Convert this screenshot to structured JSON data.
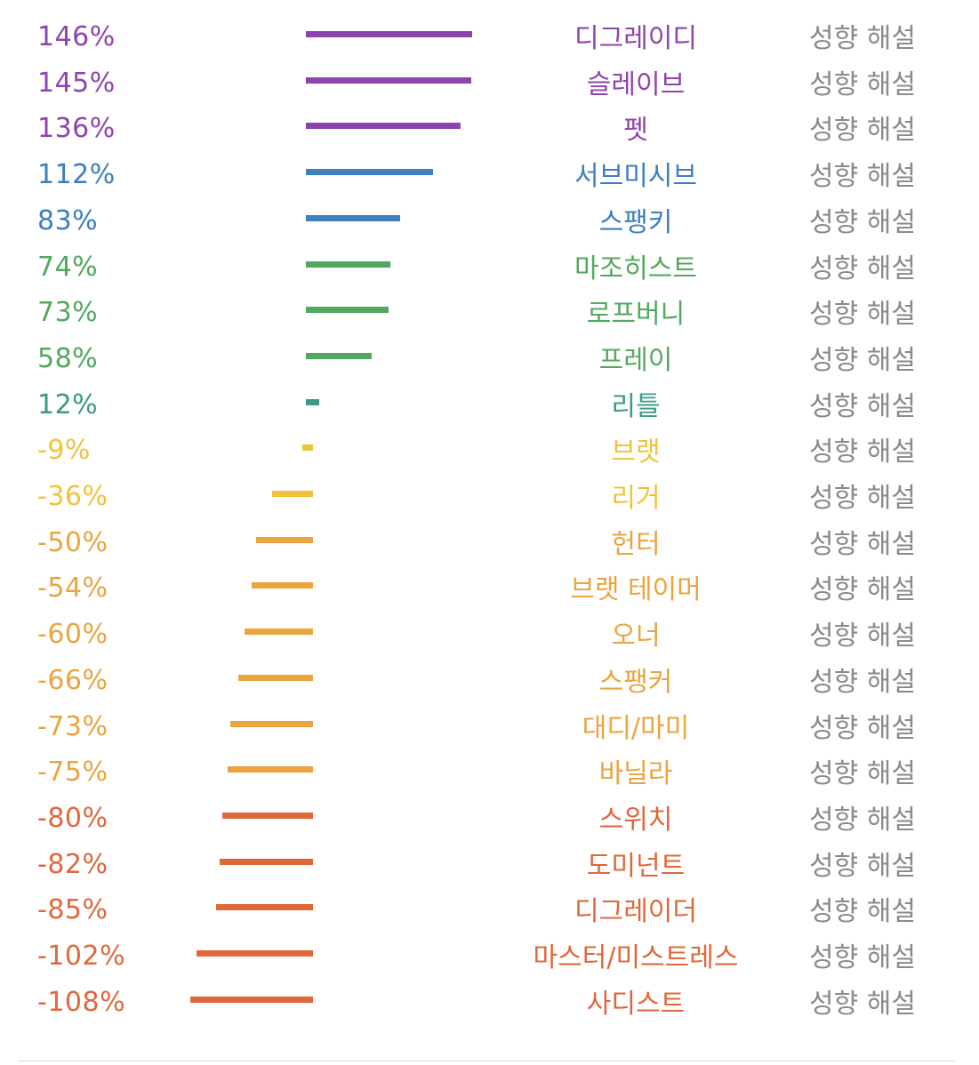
{
  "chart_data": {
    "type": "bar",
    "orientation": "horizontal",
    "categories": [
      "디그레이디",
      "슬레이브",
      "펫",
      "서브미시브",
      "스팽키",
      "마조히스트",
      "로프버니",
      "프레이",
      "리틀",
      "브랫",
      "리거",
      "헌터",
      "브랫 테이머",
      "오너",
      "스팽커",
      "대디/마미",
      "바닐라",
      "스위치",
      "도미넌트",
      "디그레이더",
      "마스터/미스트레스",
      "사디스트"
    ],
    "values": [
      146,
      145,
      136,
      112,
      83,
      74,
      73,
      58,
      12,
      -9,
      -36,
      -50,
      -54,
      -60,
      -66,
      -73,
      -75,
      -80,
      -82,
      -85,
      -102,
      -108
    ],
    "labels": [
      "146%",
      "145%",
      "136%",
      "112%",
      "83%",
      "74%",
      "73%",
      "58%",
      "12%",
      "-9%",
      "-36%",
      "-50%",
      "-54%",
      "-60%",
      "-66%",
      "-73%",
      "-75%",
      "-80%",
      "-82%",
      "-85%",
      "-102%",
      "-108%"
    ],
    "colors": [
      "#8e44ad",
      "#8e44ad",
      "#8e44ad",
      "#3d7fbf",
      "#3d7fbf",
      "#52a85e",
      "#52a85e",
      "#52a85e",
      "#3a9a86",
      "#f2c23c",
      "#f2c23c",
      "#eba43f",
      "#eba43f",
      "#eba43f",
      "#eba43f",
      "#eba43f",
      "#eba43f",
      "#e0673a",
      "#e0673a",
      "#e0673a",
      "#e0673a",
      "#e0673a"
    ],
    "xlim": [
      -108,
      146
    ],
    "grid": false,
    "title": "",
    "xlabel": "",
    "ylabel": ""
  },
  "row_action_label": "성향 해설"
}
